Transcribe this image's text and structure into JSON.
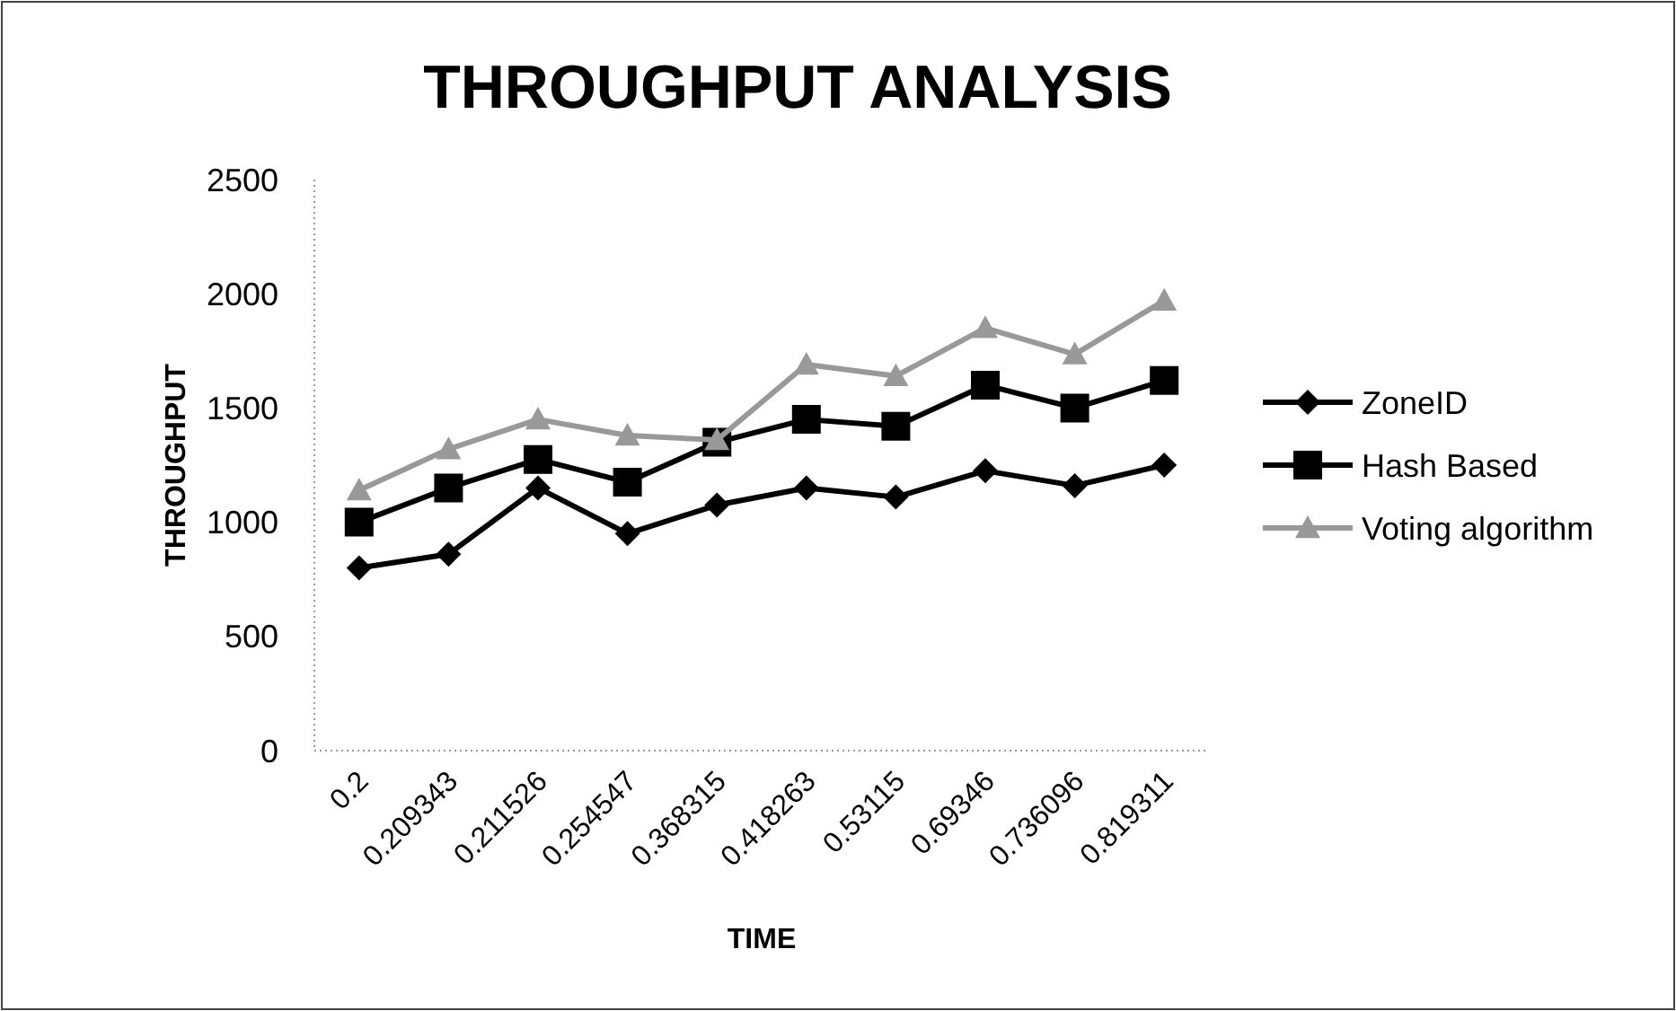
{
  "chart_data": {
    "type": "line",
    "title": "THROUGHPUT ANALYSIS",
    "xlabel": "TIME",
    "ylabel": "THROUGHPUT",
    "categories": [
      "0.2",
      "0.209343",
      "0.211526",
      "0.254547",
      "0.368315",
      "0.418263",
      "0.53115",
      "0.69346",
      "0.736096",
      "0.819311"
    ],
    "ylim": [
      0,
      2500
    ],
    "yticks": [
      0,
      500,
      1000,
      1500,
      2000,
      2500
    ],
    "legend": "right",
    "series": [
      {
        "name": "ZoneID",
        "color": "#000000",
        "marker": "diamond",
        "values": [
          800,
          860,
          1150,
          950,
          1075,
          1150,
          1110,
          1225,
          1160,
          1250
        ]
      },
      {
        "name": "Hash Based",
        "color": "#000000",
        "marker": "square",
        "values": [
          1000,
          1150,
          1275,
          1175,
          1350,
          1450,
          1420,
          1600,
          1500,
          1620
        ]
      },
      {
        "name": "Voting algorithm",
        "color": "#999999",
        "marker": "triangle",
        "values": [
          1140,
          1320,
          1450,
          1380,
          1360,
          1690,
          1640,
          1850,
          1735,
          1970
        ]
      }
    ]
  }
}
